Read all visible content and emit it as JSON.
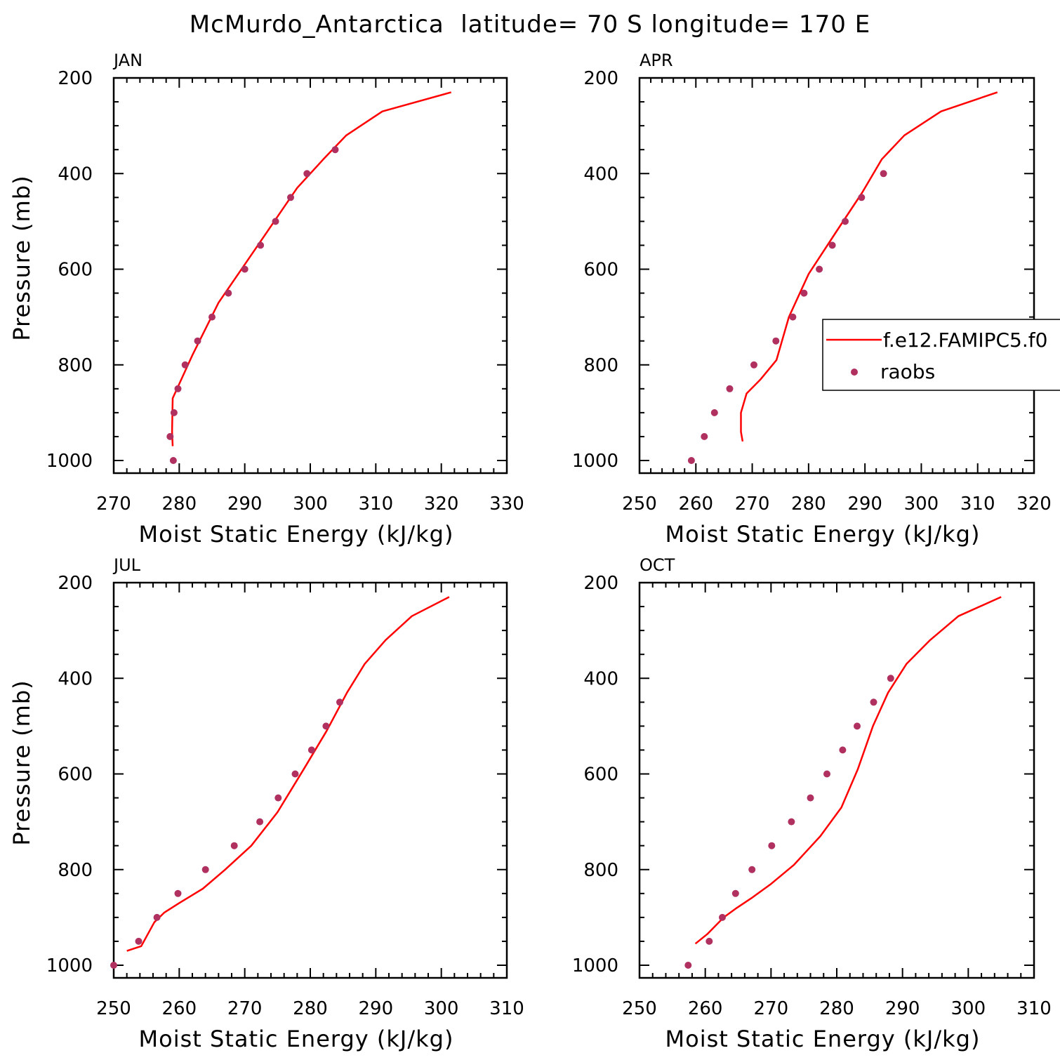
{
  "page_title": "McMurdo_Antarctica  latitude= 70 S longitude= 170 E",
  "legend": {
    "model_label": "f.e12.FAMIPC5.f0",
    "obs_label": "raobs"
  },
  "colors": {
    "model": "#ff0000",
    "obs": "#b03060",
    "axis": "#000000"
  },
  "chart_data": [
    {
      "type": "line",
      "title": "JAN",
      "xlabel": "Moist Static Energy (kJ/kg)",
      "ylabel": "Pressure (mb)",
      "xlim": [
        270,
        330
      ],
      "ylim": [
        1000,
        200
      ],
      "x_ticks": [
        "270",
        "280",
        "290",
        "300",
        "310",
        "320",
        "330"
      ],
      "y_ticks": [
        "200",
        "400",
        "600",
        "800",
        "1000"
      ],
      "grid": false,
      "series": [
        {
          "name": "f.e12.FAMIPC5.f0",
          "kind": "line",
          "points": [
            [
              321.5,
              230
            ],
            [
              311,
              270
            ],
            [
              305.5,
              320
            ],
            [
              302,
              370
            ],
            [
              298,
              430
            ],
            [
              294,
              510
            ],
            [
              290,
              590
            ],
            [
              286,
              670
            ],
            [
              282,
              780
            ],
            [
              280,
              840
            ],
            [
              279,
              870
            ],
            [
              278.9,
              940
            ],
            [
              279,
              970
            ]
          ]
        },
        {
          "name": "raobs",
          "kind": "scatter",
          "points": [
            [
              303.8,
              350
            ],
            [
              299.5,
              400
            ],
            [
              297,
              450
            ],
            [
              294.7,
              500
            ],
            [
              292.4,
              550
            ],
            [
              290,
              600
            ],
            [
              287.5,
              650
            ],
            [
              285,
              700
            ],
            [
              282.8,
              750
            ],
            [
              280.9,
              800
            ],
            [
              279.8,
              850
            ],
            [
              279.2,
              900
            ],
            [
              278.6,
              950
            ],
            [
              279.1,
              1000
            ]
          ]
        }
      ]
    },
    {
      "type": "line",
      "title": "APR",
      "xlabel": "Moist Static Energy (kJ/kg)",
      "ylabel": "",
      "xlim": [
        250,
        320
      ],
      "ylim": [
        1000,
        200
      ],
      "x_ticks": [
        "250",
        "260",
        "270",
        "280",
        "290",
        "300",
        "310",
        "320"
      ],
      "y_ticks": [
        "200",
        "400",
        "600",
        "800",
        "1000"
      ],
      "grid": false,
      "legend_position": "right",
      "series": [
        {
          "name": "f.e12.FAMIPC5.f0",
          "kind": "line",
          "points": [
            [
              313.5,
              230
            ],
            [
              303.5,
              270
            ],
            [
              297,
              320
            ],
            [
              293,
              370
            ],
            [
              289.5,
              440
            ],
            [
              285,
              520
            ],
            [
              280,
              610
            ],
            [
              276.5,
              700
            ],
            [
              274.3,
              790
            ],
            [
              271.5,
              830
            ],
            [
              269,
              860
            ],
            [
              268,
              900
            ],
            [
              268,
              940
            ],
            [
              268.3,
              960
            ]
          ]
        },
        {
          "name": "raobs",
          "kind": "scatter",
          "points": [
            [
              293.3,
              400
            ],
            [
              289.4,
              450
            ],
            [
              286.5,
              500
            ],
            [
              284.2,
              550
            ],
            [
              281.9,
              600
            ],
            [
              279.2,
              650
            ],
            [
              277.2,
              700
            ],
            [
              274.2,
              750
            ],
            [
              270.3,
              800
            ],
            [
              266,
              850
            ],
            [
              263.3,
              900
            ],
            [
              261.5,
              950
            ],
            [
              259.2,
              1000
            ]
          ]
        }
      ]
    },
    {
      "type": "line",
      "title": "JUL",
      "xlabel": "Moist Static Energy (kJ/kg)",
      "ylabel": "Pressure (mb)",
      "xlim": [
        250,
        310
      ],
      "ylim": [
        1000,
        200
      ],
      "x_ticks": [
        "250",
        "260",
        "270",
        "280",
        "290",
        "300",
        "310"
      ],
      "y_ticks": [
        "200",
        "400",
        "600",
        "800",
        "1000"
      ],
      "grid": false,
      "series": [
        {
          "name": "f.e12.FAMIPC5.f0",
          "kind": "line",
          "points": [
            [
              301.2,
              230
            ],
            [
              295.5,
              270
            ],
            [
              291.5,
              320
            ],
            [
              288.3,
              370
            ],
            [
              285.6,
              430
            ],
            [
              282.5,
              510
            ],
            [
              279,
              590
            ],
            [
              275,
              680
            ],
            [
              271,
              750
            ],
            [
              267,
              800
            ],
            [
              263.6,
              840
            ],
            [
              260,
              870
            ],
            [
              257.7,
              890
            ],
            [
              256.2,
              910
            ],
            [
              254.2,
              960
            ],
            [
              252,
              970
            ]
          ]
        },
        {
          "name": "raobs",
          "kind": "scatter",
          "points": [
            [
              284.5,
              450
            ],
            [
              282.4,
              500
            ],
            [
              280.2,
              550
            ],
            [
              277.7,
              600
            ],
            [
              275.1,
              650
            ],
            [
              272.3,
              700
            ],
            [
              268.4,
              750
            ],
            [
              264,
              800
            ],
            [
              259.8,
              850
            ],
            [
              256.6,
              900
            ],
            [
              253.8,
              950
            ],
            [
              250,
              1000
            ]
          ]
        }
      ]
    },
    {
      "type": "line",
      "title": "OCT",
      "xlabel": "Moist Static Energy (kJ/kg)",
      "ylabel": "",
      "xlim": [
        250,
        310
      ],
      "ylim": [
        1000,
        200
      ],
      "x_ticks": [
        "250",
        "260",
        "270",
        "280",
        "290",
        "300",
        "310"
      ],
      "y_ticks": [
        "200",
        "400",
        "600",
        "800",
        "1000"
      ],
      "grid": false,
      "series": [
        {
          "name": "f.e12.FAMIPC5.f0",
          "kind": "line",
          "points": [
            [
              305,
              230
            ],
            [
              298.5,
              270
            ],
            [
              294.2,
              320
            ],
            [
              290.6,
              370
            ],
            [
              287.8,
              430
            ],
            [
              285.5,
              500
            ],
            [
              283.2,
              590
            ],
            [
              280.7,
              670
            ],
            [
              277.5,
              730
            ],
            [
              273.5,
              790
            ],
            [
              270,
              830
            ],
            [
              267,
              860
            ],
            [
              264.8,
              880
            ],
            [
              262.8,
              900
            ],
            [
              260.3,
              935
            ],
            [
              258.5,
              955
            ]
          ]
        },
        {
          "name": "raobs",
          "kind": "scatter",
          "points": [
            [
              288.2,
              400
            ],
            [
              285.6,
              450
            ],
            [
              283.1,
              500
            ],
            [
              280.9,
              550
            ],
            [
              278.5,
              600
            ],
            [
              276,
              650
            ],
            [
              273.1,
              700
            ],
            [
              270.1,
              750
            ],
            [
              267.1,
              800
            ],
            [
              264.6,
              850
            ],
            [
              262.6,
              900
            ],
            [
              260.6,
              950
            ],
            [
              257.4,
              1000
            ]
          ]
        }
      ]
    }
  ]
}
